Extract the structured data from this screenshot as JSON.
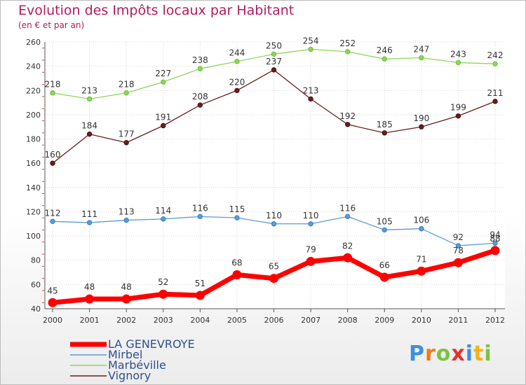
{
  "chart_data": {
    "type": "line",
    "title": "Evolution des Impôts locaux par Habitant",
    "subtitle": "(en € et par an)",
    "x": [
      "2000",
      "2001",
      "2002",
      "2003",
      "2004",
      "2005",
      "2006",
      "2007",
      "2008",
      "2009",
      "2010",
      "2011",
      "2012"
    ],
    "ylim": [
      40,
      260
    ],
    "yticks": [
      40,
      60,
      80,
      100,
      120,
      140,
      160,
      180,
      200,
      220,
      240,
      260
    ],
    "grid": true,
    "legend_position": "bottom-left",
    "series": [
      {
        "name": "LA GENEVROYE",
        "color": "#ff0000",
        "values": [
          45,
          48,
          48,
          52,
          51,
          68,
          65,
          79,
          82,
          66,
          71,
          78,
          88
        ]
      },
      {
        "name": "Mirbel",
        "color": "#5b9bd5",
        "values": [
          112,
          111,
          113,
          114,
          116,
          115,
          110,
          110,
          116,
          105,
          106,
          92,
          94
        ]
      },
      {
        "name": "Marbéville",
        "color": "#8ed65a",
        "values": [
          218,
          213,
          218,
          227,
          238,
          244,
          250,
          254,
          252,
          246,
          247,
          243,
          242
        ]
      },
      {
        "name": "Vignory",
        "color": "#6b1c1c",
        "values": [
          160,
          184,
          177,
          191,
          208,
          220,
          237,
          213,
          192,
          185,
          190,
          199,
          211
        ]
      }
    ]
  },
  "logo": {
    "p": "P",
    "r": "r",
    "o": "o",
    "x": "x",
    "i": "i",
    "t": "t",
    "i2": "i"
  }
}
